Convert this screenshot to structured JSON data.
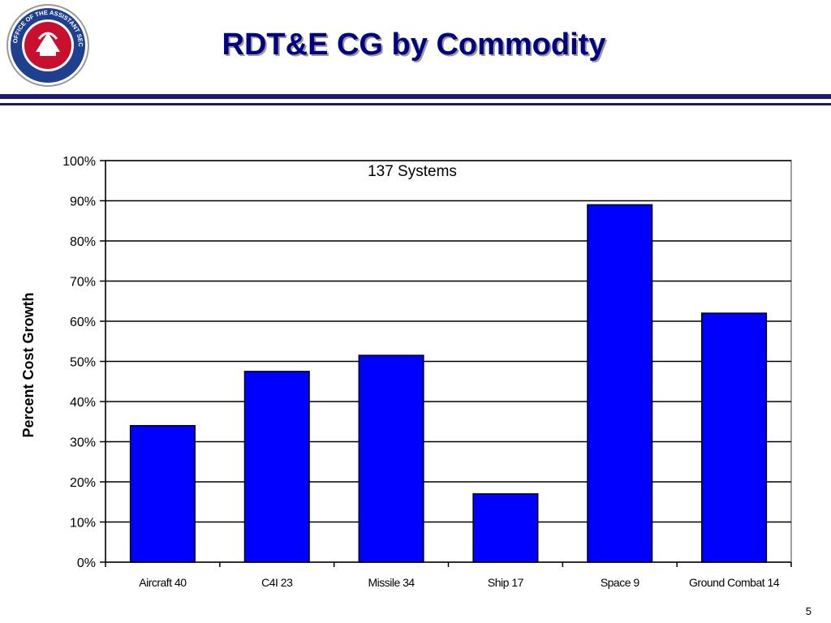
{
  "slide": {
    "title": "RDT&E CG by Commodity",
    "page_number": "5",
    "seal_text": "OFFICE OF THE ASSISTANT SECRETARY OF THE ARMY"
  },
  "colors": {
    "title": "#000080",
    "rule": "#1a1a6e",
    "bar_fill": "#0000ff",
    "bar_stroke": "#000000",
    "plot_border": "#808080",
    "seal_ring": "#1f3f8f",
    "seal_center": "#c8102e"
  },
  "chart_data": {
    "type": "bar",
    "categories": [
      "Aircraft 40",
      "C4I 23",
      "Missile 34",
      "Ship 17",
      "Space 9",
      "Ground Combat 14"
    ],
    "values": [
      34,
      47.5,
      51.5,
      17,
      89,
      62
    ],
    "annotation": "137 Systems",
    "ylabel": "Percent Cost Growth",
    "xlabel": "",
    "ylim": [
      0,
      100
    ],
    "ytick_step": 10,
    "ytick_suffix": "%",
    "grid": true,
    "legend": "none"
  }
}
